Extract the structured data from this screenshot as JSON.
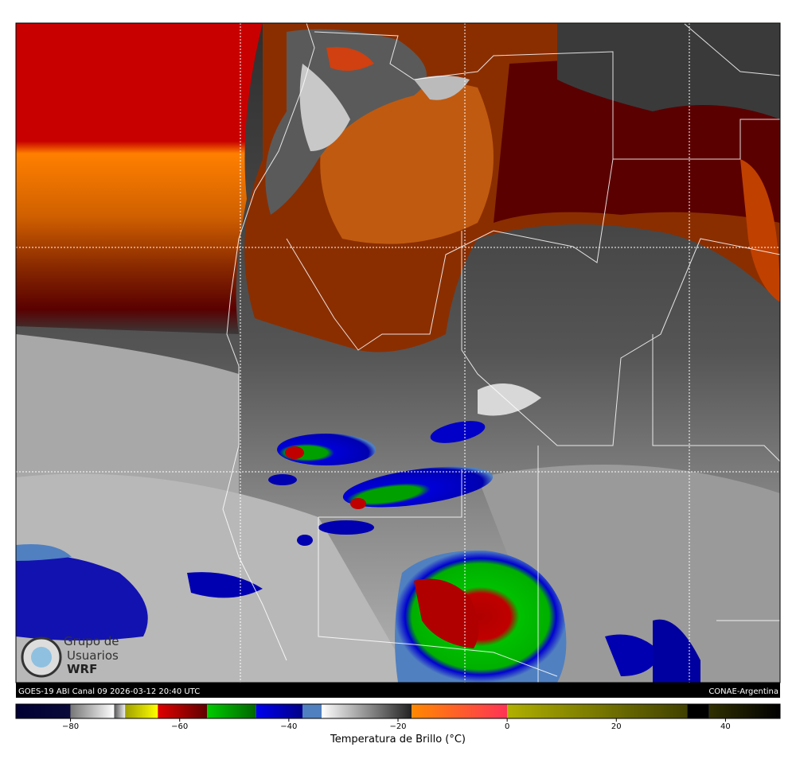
{
  "map": {
    "footer_left": "GOES-19 ABI Canal 09 2026-03-12 20:40 UTC",
    "footer_right": "CONAE-Argentina",
    "logo": [
      "Grupo de",
      "Usuarios",
      "WRF"
    ]
  },
  "colorbar": {
    "label": "Temperatura de Brillo (°C)",
    "lim": [
      -90,
      50
    ],
    "ticks": [
      {
        "value": -80,
        "label": "−80"
      },
      {
        "value": -60,
        "label": "−60"
      },
      {
        "value": -40,
        "label": "−40"
      },
      {
        "value": -20,
        "label": "−20"
      },
      0,
      20,
      40
    ],
    "segments": [
      {
        "from": -90,
        "to": -80,
        "colors": [
          "#000033",
          "#0a0a3a"
        ]
      },
      {
        "from": -80,
        "to": -72,
        "colors": [
          "#777777",
          "#ffffff"
        ]
      },
      {
        "from": -72,
        "to": -70,
        "colors": [
          "#555555",
          "#eeeeee"
        ]
      },
      {
        "from": -70,
        "to": -64,
        "colors": [
          "#a0a000",
          "#ffff00"
        ]
      },
      {
        "from": -64,
        "to": -55,
        "colors": [
          "#e00000",
          "#600000"
        ]
      },
      {
        "from": -55,
        "to": -46,
        "colors": [
          "#00cc00",
          "#006600"
        ]
      },
      {
        "from": -46,
        "to": -37.5,
        "colors": [
          "#0000ee",
          "#000088"
        ]
      },
      {
        "from": -37.5,
        "to": -34,
        "colors": [
          "#5080c0",
          "#5080c0"
        ]
      },
      {
        "from": -34,
        "to": -17.5,
        "colors": [
          "#ffffff",
          "#222222"
        ]
      },
      {
        "from": -17.5,
        "to": 0,
        "colors": [
          "#ff8800",
          "#ff3355"
        ]
      },
      {
        "from": 0,
        "to": 33,
        "colors": [
          "#b0b000",
          "#404000"
        ]
      },
      {
        "from": 33,
        "to": 37,
        "colors": [
          "#000000",
          "#000000"
        ]
      },
      {
        "from": 37,
        "to": 50,
        "colors": [
          "#303000",
          "#000000"
        ]
      }
    ]
  }
}
